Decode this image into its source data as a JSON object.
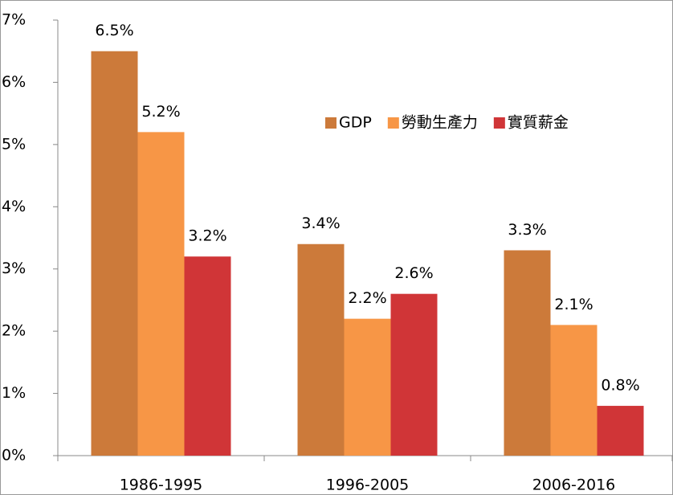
{
  "chart_data": {
    "type": "bar",
    "categories": [
      "1986-1995",
      "1996-2005",
      "2006-2016"
    ],
    "series": [
      {
        "name": "GDP",
        "color": "#cc7a3a",
        "values": [
          6.5,
          3.4,
          3.3
        ],
        "value_labels": [
          "6.5%",
          "3.4%",
          "3.3%"
        ]
      },
      {
        "name": "勞動生產力",
        "color": "#f79646",
        "values": [
          5.2,
          2.2,
          2.1
        ],
        "value_labels": [
          "5.2%",
          "2.2%",
          "2.1%"
        ]
      },
      {
        "name": "實質薪金",
        "color": "#d03537",
        "values": [
          3.2,
          2.6,
          0.8
        ],
        "value_labels": [
          "3.2%",
          "2.6%",
          "0.8%"
        ]
      }
    ],
    "ylim": [
      0,
      7
    ],
    "yticks": [
      {
        "value": 0,
        "label": "0%"
      },
      {
        "value": 1,
        "label": "1%"
      },
      {
        "value": 2,
        "label": "2%"
      },
      {
        "value": 3,
        "label": "3%"
      },
      {
        "value": 4,
        "label": "4%"
      },
      {
        "value": 5,
        "label": "5%"
      },
      {
        "value": 6,
        "label": "6%"
      },
      {
        "value": 7,
        "label": "7%"
      }
    ],
    "grid": false,
    "legend": "right"
  }
}
